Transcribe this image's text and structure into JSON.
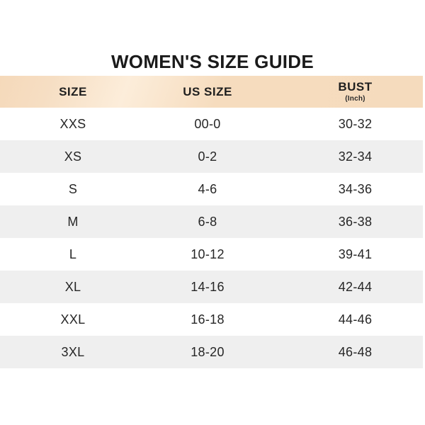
{
  "title": "WOMEN'S SIZE GUIDE",
  "table": {
    "columns": {
      "size": "SIZE",
      "us_size": "US SIZE",
      "bust": "BUST",
      "bust_unit": "(Inch)"
    },
    "rows": [
      {
        "size": "XXS",
        "us_size": "00-0",
        "bust": "30-32"
      },
      {
        "size": "XS",
        "us_size": "0-2",
        "bust": "32-34"
      },
      {
        "size": "S",
        "us_size": "4-6",
        "bust": "34-36"
      },
      {
        "size": "M",
        "us_size": "6-8",
        "bust": "36-38"
      },
      {
        "size": "L",
        "us_size": "10-12",
        "bust": "39-41"
      },
      {
        "size": "XL",
        "us_size": "14-16",
        "bust": "42-44"
      },
      {
        "size": "XXL",
        "us_size": "16-18",
        "bust": "44-46"
      },
      {
        "size": "3XL",
        "us_size": "18-20",
        "bust": "46-48"
      }
    ]
  },
  "colors": {
    "header_bg": "#f6dcbe",
    "header_bg_light": "#fcedda",
    "alt_row_bg": "#efefef",
    "text": "#262626",
    "title_text": "#1a1a1a",
    "page_bg": "#ffffff"
  },
  "chart_data": {
    "type": "table",
    "title": "WOMEN'S SIZE GUIDE",
    "columns": [
      "SIZE",
      "US SIZE",
      "BUST (Inch)"
    ],
    "rows": [
      [
        "XXS",
        "00-0",
        "30-32"
      ],
      [
        "XS",
        "0-2",
        "32-34"
      ],
      [
        "S",
        "4-6",
        "34-36"
      ],
      [
        "M",
        "6-8",
        "36-38"
      ],
      [
        "L",
        "10-12",
        "39-41"
      ],
      [
        "XL",
        "14-16",
        "42-44"
      ],
      [
        "XXL",
        "16-18",
        "44-46"
      ],
      [
        "3XL",
        "18-20",
        "46-48"
      ]
    ],
    "layout_hints": {
      "alternating_row_shading": true,
      "header_background": "peach gradient",
      "grid": false
    }
  }
}
